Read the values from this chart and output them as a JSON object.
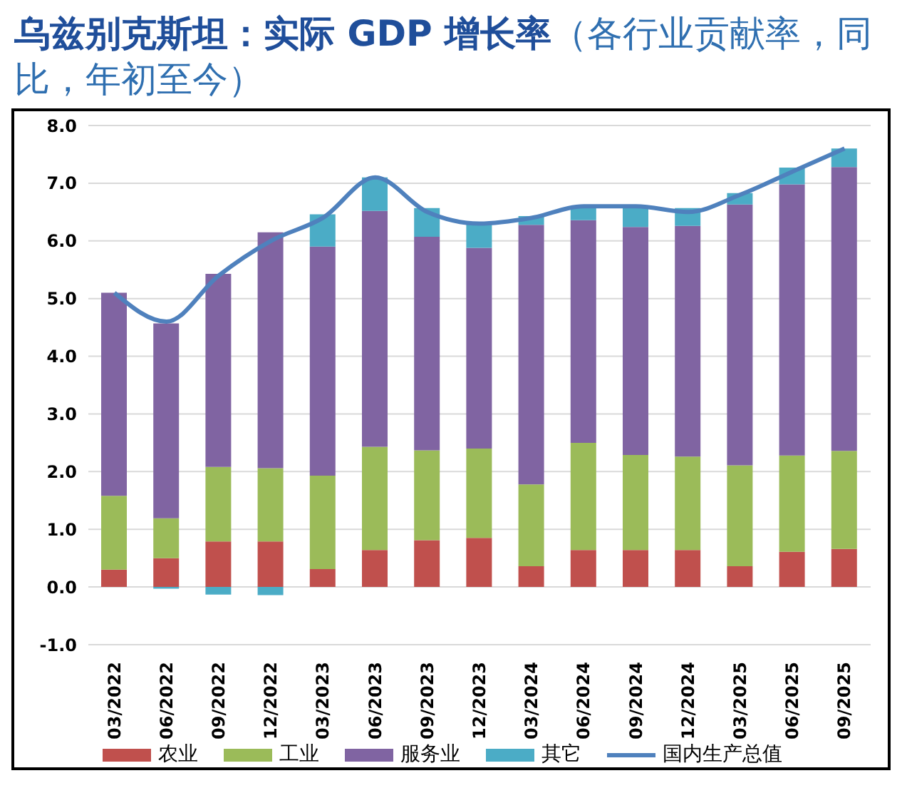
{
  "chart_data": {
    "type": "bar",
    "title": "乌兹别克斯坦：实际 GDP 增长率",
    "subtitle": "（各行业贡献率，同比，年初至今）",
    "stacked": true,
    "categories": [
      "03/2022",
      "06/2022",
      "09/2022",
      "12/2022",
      "03/2023",
      "06/2023",
      "09/2023",
      "12/2023",
      "03/2024",
      "06/2024",
      "09/2024",
      "12/2024",
      "03/2025",
      "06/2025",
      "09/2025"
    ],
    "series": [
      {
        "name": "农业",
        "color": "#c0504d",
        "values": [
          0.3,
          0.5,
          0.79,
          0.79,
          0.31,
          0.64,
          0.81,
          0.85,
          0.36,
          0.64,
          0.64,
          0.64,
          0.36,
          0.61,
          0.66
        ]
      },
      {
        "name": "工业",
        "color": "#9bbb59",
        "values": [
          1.28,
          0.69,
          1.29,
          1.27,
          1.62,
          1.79,
          1.56,
          1.55,
          1.42,
          1.86,
          1.65,
          1.62,
          1.75,
          1.67,
          1.7
        ]
      },
      {
        "name": "服务业",
        "color": "#8064a2",
        "values": [
          3.52,
          3.38,
          3.35,
          4.09,
          3.97,
          4.09,
          3.7,
          3.48,
          4.5,
          3.86,
          3.95,
          4.0,
          4.52,
          4.7,
          4.92
        ]
      },
      {
        "name": "其它",
        "color": "#4bacc6",
        "values": [
          0,
          -0.03,
          -0.13,
          -0.14,
          0.56,
          0.58,
          0.5,
          0.45,
          0.15,
          0.21,
          0.33,
          0.31,
          0.2,
          0.29,
          0.32
        ]
      },
      {
        "name": "国内生产总值",
        "type": "line",
        "color": "#4f81bd",
        "marker": "none",
        "values": [
          5.1,
          4.6,
          5.4,
          6.0,
          6.4,
          7.1,
          6.5,
          6.3,
          6.4,
          6.6,
          6.6,
          6.5,
          6.8,
          7.2,
          7.6
        ]
      }
    ],
    "ylim": [
      -1,
      8
    ],
    "yticks": [
      {
        "value": -1,
        "label": "-1.0"
      },
      {
        "value": 0,
        "label": "0.0"
      },
      {
        "value": 1,
        "label": "1.0"
      },
      {
        "value": 2,
        "label": "2.0"
      },
      {
        "value": 3,
        "label": "3.0"
      },
      {
        "value": 4,
        "label": "4.0"
      },
      {
        "value": 5,
        "label": "5.0"
      },
      {
        "value": 6,
        "label": "6.0"
      },
      {
        "value": 7,
        "label": "7.0"
      },
      {
        "value": 8,
        "label": "8.0"
      }
    ],
    "grid": "y",
    "legend": "bottom"
  }
}
